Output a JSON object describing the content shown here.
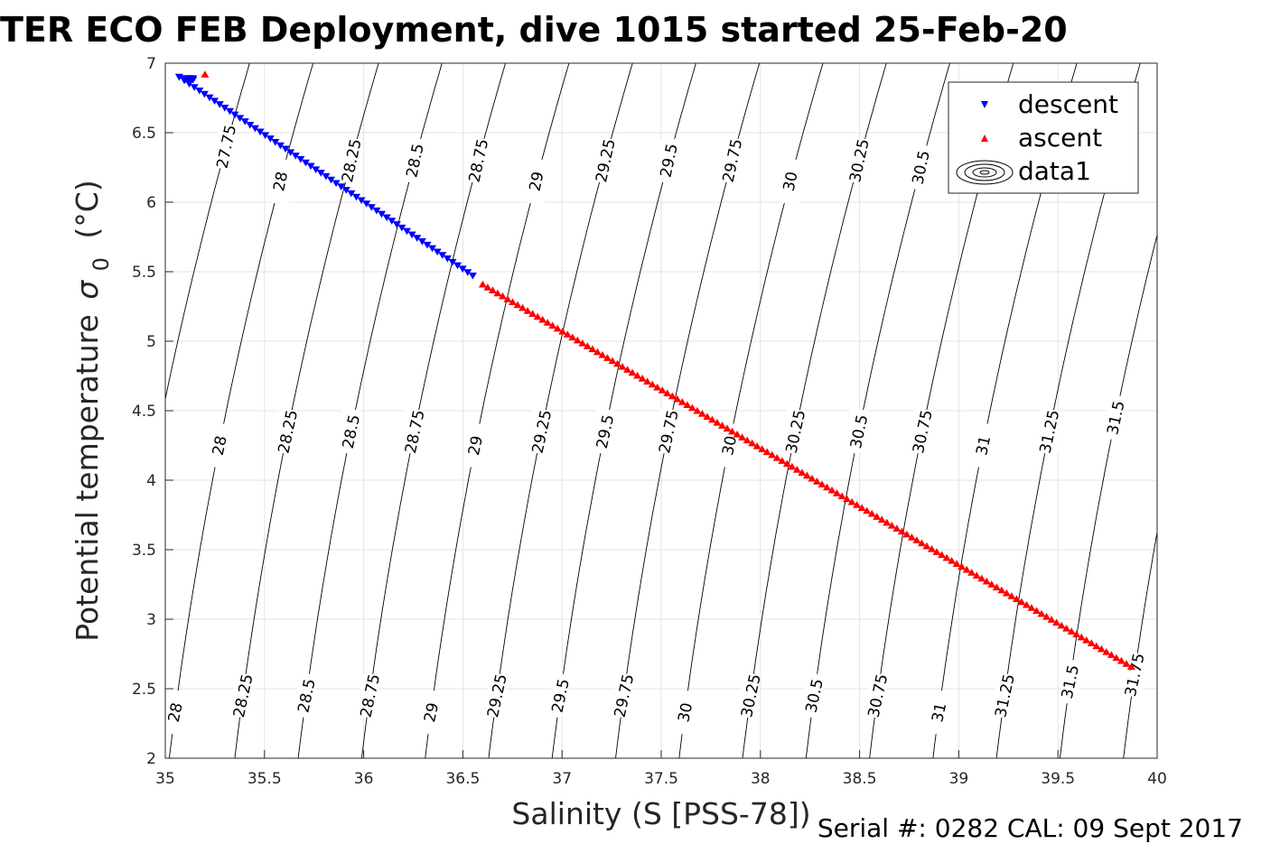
{
  "chart_data": {
    "type": "scatter",
    "title": "TER ECO FEB Deployment, dive 1015 started 25-Feb-20",
    "xlabel": "Salinity (S [PSS-78])",
    "ylabel": "Potential temperature",
    "ylabel_symbol": "σ",
    "ylabel_subscript": "0",
    "ylabel_unit": "(°C)",
    "xlim": [
      35,
      40
    ],
    "ylim": [
      2,
      7
    ],
    "xticks": [
      "35",
      "35.5",
      "36",
      "36.5",
      "37",
      "37.5",
      "38",
      "38.5",
      "39",
      "39.5",
      "40"
    ],
    "yticks": [
      "2",
      "2.5",
      "3",
      "3.5",
      "4",
      "4.5",
      "5",
      "5.5",
      "6",
      "6.5",
      "7"
    ],
    "grid": true,
    "legend_position": "top-right",
    "series": [
      {
        "name": "descent",
        "marker": "triangle-down",
        "color": "#0000ff",
        "x_range": [
          35.07,
          36.55
        ],
        "y_range": [
          6.9,
          5.47
        ],
        "cluster_point": [
          35.1,
          6.89
        ]
      },
      {
        "name": "ascent",
        "marker": "triangle-up",
        "color": "#ff0000",
        "x_range": [
          36.6,
          39.87
        ],
        "y_range": [
          5.41,
          2.66
        ],
        "outlier_point": [
          35.2,
          6.92
        ]
      },
      {
        "name": "data1",
        "type": "contour",
        "color": "#000000"
      }
    ],
    "contour_levels": [
      {
        "value": 27.75,
        "label": "27.75",
        "slope": 0.1,
        "label_y": [
          6.4
        ]
      },
      {
        "value": 28,
        "label": "28",
        "slope": 0.1,
        "label_y": [
          6.15,
          4.25,
          2.33
        ]
      },
      {
        "value": 28.25,
        "label": "28.25",
        "slope": 0.1,
        "label_y": [
          6.3,
          4.35,
          2.45
        ]
      },
      {
        "value": 28.5,
        "label": "28.5",
        "slope": 0.1,
        "label_y": [
          6.3,
          4.35,
          2.45
        ]
      },
      {
        "value": 28.75,
        "label": "28.75",
        "slope": 0.1,
        "label_y": [
          6.3,
          4.35,
          2.45
        ]
      },
      {
        "value": 29,
        "label": "29",
        "slope": 0.1,
        "label_y": [
          6.15,
          4.25,
          2.33
        ]
      },
      {
        "value": 29.25,
        "label": "29.25",
        "slope": 0.1,
        "label_y": [
          6.3,
          4.35,
          2.45
        ]
      },
      {
        "value": 29.5,
        "label": "29.5",
        "slope": 0.1,
        "label_y": [
          6.3,
          4.35,
          2.45
        ]
      },
      {
        "value": 29.75,
        "label": "29.75",
        "slope": 0.1,
        "label_y": [
          6.3,
          4.35,
          2.45
        ]
      },
      {
        "value": 30,
        "label": "30",
        "slope": 0.1,
        "label_y": [
          6.15,
          4.25,
          2.33
        ]
      },
      {
        "value": 30.25,
        "label": "30.25",
        "slope": 0.1,
        "label_y": [
          6.3,
          4.35,
          2.45
        ]
      },
      {
        "value": 30.5,
        "label": "30.5",
        "slope": 0.1,
        "label_y": [
          6.25,
          4.35,
          2.45
        ]
      },
      {
        "value": 30.75,
        "label": "30.75",
        "slope": 0.1,
        "label_y": [
          4.35,
          2.45
        ]
      },
      {
        "value": 31,
        "label": "31",
        "slope": 0.1,
        "label_y": [
          4.25,
          2.33
        ]
      },
      {
        "value": 31.25,
        "label": "31.25",
        "slope": 0.1,
        "label_y": [
          4.35,
          2.45
        ]
      },
      {
        "value": 31.5,
        "label": "31.5",
        "slope": 0.1,
        "label_y": [
          4.45,
          2.55
        ]
      },
      {
        "value": 31.75,
        "label": "31.75",
        "slope": 0.1,
        "label_y": [
          2.6
        ]
      }
    ],
    "annotation": "Serial #: 0282  CAL: 09 Sept 2017"
  }
}
